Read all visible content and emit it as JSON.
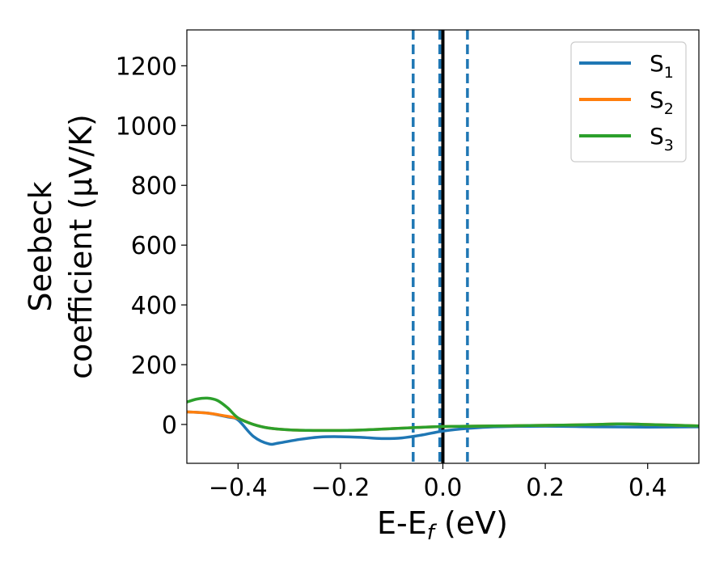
{
  "chart_data": {
    "type": "line",
    "xlabel": "E-E",
    "xlabel_sub": "f",
    "xlabel_unit": " (eV)",
    "ylabel_line1": "Seebeck",
    "ylabel_line2": "coefficient  (μV/K)",
    "xlim": [
      -0.5,
      0.5
    ],
    "ylim": [
      -130,
      1320
    ],
    "x_ticks": [
      -0.4,
      -0.2,
      0.0,
      0.2,
      0.4
    ],
    "x_tick_labels": [
      "−0.4",
      "−0.2",
      "0.0",
      "0.2",
      "0.4"
    ],
    "y_ticks": [
      0,
      200,
      400,
      600,
      800,
      1000,
      1200
    ],
    "y_tick_labels": [
      "0",
      "200",
      "400",
      "600",
      "800",
      "1000",
      "1200"
    ],
    "grid": false,
    "legend_position": "top-right",
    "vertical_lines": [
      {
        "x": -0.058,
        "style": "dashed",
        "color": "#1f77b4"
      },
      {
        "x": -0.006,
        "style": "dashed",
        "color": "#1f77b4"
      },
      {
        "x": 0.048,
        "style": "dashed",
        "color": "#1f77b4"
      },
      {
        "x": 0.0,
        "style": "solid",
        "color": "#000000"
      }
    ],
    "series": [
      {
        "name": "S",
        "sub": "1",
        "color": "#1f77b4",
        "x": [
          -0.5,
          -0.46,
          -0.42,
          -0.4,
          -0.37,
          -0.34,
          -0.32,
          -0.28,
          -0.24,
          -0.2,
          -0.16,
          -0.12,
          -0.08,
          -0.04,
          0.0,
          0.05,
          0.1,
          0.2,
          0.3,
          0.4,
          0.5
        ],
        "y": [
          42,
          38,
          25,
          15,
          -40,
          -65,
          -62,
          -50,
          -42,
          -41,
          -43,
          -47,
          -45,
          -35,
          -22,
          -13,
          -8,
          -6,
          -8,
          -9,
          -8
        ]
      },
      {
        "name": "S",
        "sub": "2",
        "color": "#ff7f0e",
        "x": [
          -0.5,
          -0.46,
          -0.43,
          -0.4,
          -0.37,
          -0.34,
          -0.3,
          -0.25,
          -0.2,
          -0.15,
          -0.1,
          -0.05,
          0.0,
          0.1,
          0.2,
          0.3,
          0.35,
          0.4,
          0.5
        ],
        "y": [
          42,
          38,
          30,
          20,
          0,
          -12,
          -18,
          -20,
          -20,
          -18,
          -14,
          -10,
          -7,
          -5,
          -3,
          0,
          2,
          0,
          -5
        ]
      },
      {
        "name": "S",
        "sub": "3",
        "color": "#2ca02c",
        "x": [
          -0.5,
          -0.48,
          -0.46,
          -0.44,
          -0.42,
          -0.4,
          -0.37,
          -0.34,
          -0.3,
          -0.25,
          -0.2,
          -0.15,
          -0.1,
          -0.05,
          0.0,
          0.1,
          0.2,
          0.3,
          0.35,
          0.4,
          0.5
        ],
        "y": [
          75,
          85,
          88,
          80,
          55,
          22,
          0,
          -12,
          -18,
          -20,
          -20,
          -18,
          -14,
          -10,
          -7,
          -5,
          -3,
          0,
          2,
          0,
          -5
        ]
      }
    ]
  }
}
